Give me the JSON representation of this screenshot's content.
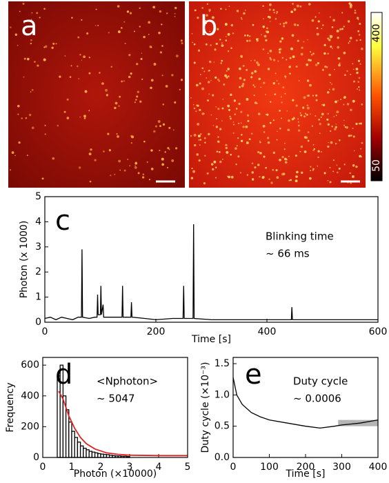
{
  "images": {
    "labels": [
      "a",
      "b"
    ],
    "colorbar_ticks": [
      400,
      50
    ]
  },
  "chart_data": [
    {
      "type": "line",
      "panel_label": "c",
      "ylabel": "Photon (x 1000)",
      "xlabel": "Time [s]",
      "annotations": [
        "Blinking time",
        "~ 66 ms"
      ],
      "color": "#000000",
      "x": [
        0,
        10,
        20,
        30,
        40,
        50,
        60,
        66,
        67,
        68,
        80,
        90,
        94,
        95,
        96,
        100,
        101,
        102,
        105,
        106,
        120,
        139,
        140,
        141,
        155,
        156,
        157,
        180,
        200,
        230,
        249,
        250,
        251,
        267,
        268,
        269,
        300,
        350,
        400,
        444,
        445,
        446,
        500,
        550,
        600
      ],
      "values": [
        0.15,
        0.2,
        0.1,
        0.2,
        0.15,
        0.1,
        0.2,
        0.2,
        2.9,
        0.2,
        0.15,
        0.2,
        0.2,
        1.1,
        0.3,
        0.3,
        1.45,
        0.3,
        0.7,
        0.2,
        0.2,
        0.2,
        1.45,
        0.2,
        0.2,
        0.8,
        0.2,
        0.15,
        0.1,
        0.15,
        0.15,
        1.45,
        0.15,
        0.15,
        3.9,
        0.15,
        0.1,
        0.1,
        0.1,
        0.1,
        0.6,
        0.1,
        0.1,
        0.1,
        0.1
      ],
      "xlim": [
        0,
        600
      ],
      "ylim": [
        0,
        5
      ],
      "xticks": [
        0,
        200,
        400,
        600
      ],
      "yticks": [
        0,
        1,
        2,
        3,
        4,
        5
      ]
    },
    {
      "type": "histogram",
      "panel_label": "d",
      "ylabel": "Frequency",
      "xlabel": "Photon (×10000)",
      "annotations": [
        "<Nphoton>",
        "~ 5047"
      ],
      "color": "#ffffff",
      "bins": [
        0.5,
        0.6,
        0.7,
        0.8,
        0.9,
        1.0,
        1.1,
        1.2,
        1.3,
        1.4,
        1.5,
        1.6,
        1.7,
        1.8,
        1.9,
        2.0,
        2.1,
        2.2,
        2.3,
        2.4,
        2.5,
        2.6,
        2.7,
        2.8,
        2.9,
        3.0
      ],
      "values": [
        530,
        600,
        400,
        310,
        230,
        170,
        130,
        100,
        75,
        60,
        50,
        40,
        35,
        30,
        25,
        22,
        20,
        18,
        15,
        12,
        10,
        10,
        8,
        8,
        6
      ],
      "fit": {
        "color": "#e02020",
        "x": [
          0.55,
          0.7,
          0.9,
          1.1,
          1.3,
          1.5,
          1.8,
          2.2,
          2.6,
          3,
          4,
          5
        ],
        "values": [
          430,
          380,
          270,
          190,
          130,
          90,
          55,
          30,
          20,
          15,
          12,
          12
        ]
      },
      "xlim": [
        0,
        5
      ],
      "ylim": [
        0,
        650
      ],
      "xticks": [
        0,
        1,
        2,
        3,
        4,
        5
      ],
      "yticks": [
        0,
        200,
        400,
        600
      ]
    },
    {
      "type": "line",
      "panel_label": "e",
      "ylabel": "Duty cycle (×10⁻³)",
      "xlabel": "Time [s]",
      "annotations": [
        "Duty cycle",
        "~ 0.0006"
      ],
      "color": "#000000",
      "x": [
        0,
        10,
        25,
        50,
        75,
        100,
        150,
        200,
        240,
        280,
        300,
        350,
        400
      ],
      "values": [
        1.28,
        1.0,
        0.85,
        0.72,
        0.65,
        0.6,
        0.55,
        0.5,
        0.47,
        0.5,
        0.52,
        0.55,
        0.6
      ],
      "band": {
        "x": [
          290,
          400
        ],
        "y": [
          0.5,
          0.6
        ],
        "color": "#b4b4b4"
      },
      "xlim": [
        0,
        400
      ],
      "ylim": [
        0,
        1.6
      ],
      "xticks": [
        0,
        100,
        200,
        300,
        400
      ],
      "yticks": [
        {
          "value": 0,
          "label": "0.0"
        },
        {
          "value": 0.5,
          "label": "0.5"
        },
        {
          "value": 1,
          "label": "1.0"
        },
        {
          "value": 1.5,
          "label": "1.5"
        }
      ]
    }
  ]
}
